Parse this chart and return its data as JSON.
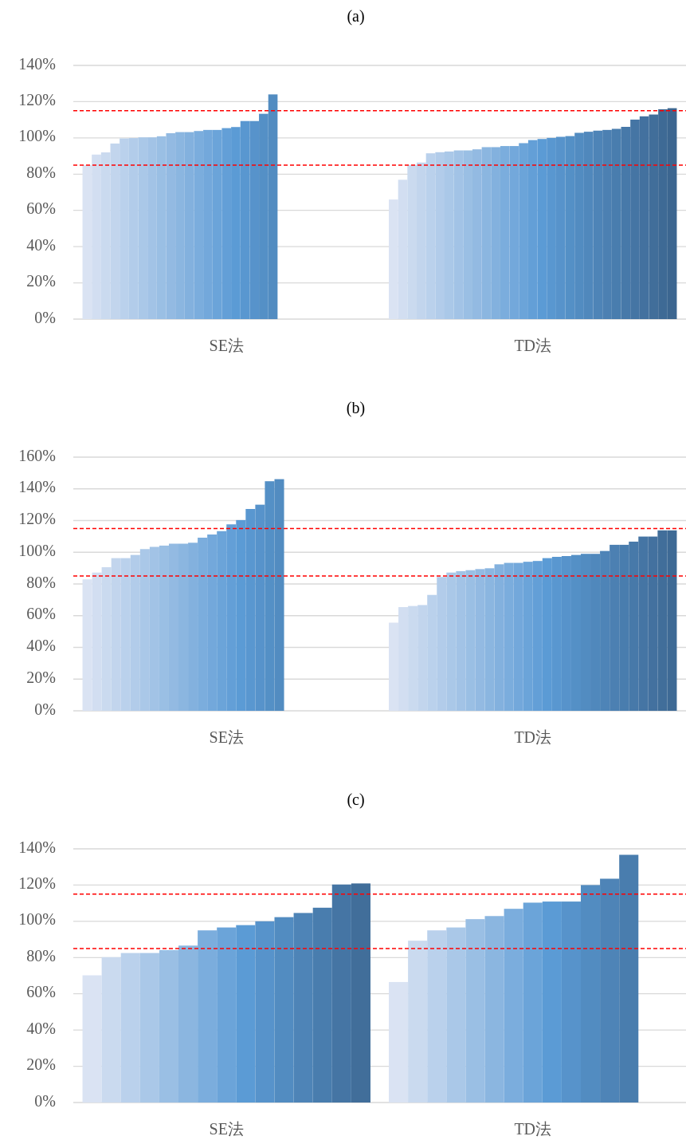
{
  "chart_data": [
    {
      "type": "bar",
      "title": "(a)",
      "categories": [
        "SE法",
        "TD法"
      ],
      "ylim": [
        0,
        140
      ],
      "yticks": [
        {
          "value": 0,
          "label": "0%"
        },
        {
          "value": 20,
          "label": "20%"
        },
        {
          "value": 40,
          "label": "40%"
        },
        {
          "value": 60,
          "label": "60%"
        },
        {
          "value": 80,
          "label": "80%"
        },
        {
          "value": 100,
          "label": "100%"
        },
        {
          "value": 120,
          "label": "120%"
        },
        {
          "value": 140,
          "label": "140%"
        }
      ],
      "grid": "y",
      "ref_lines": [
        {
          "axis": "y",
          "value": 115,
          "color": "#ff0000",
          "line_style": "dashed"
        },
        {
          "axis": "y",
          "value": 85,
          "color": "#ff0000",
          "line_style": "dashed"
        }
      ],
      "series": [
        {
          "color": "#dae3f3",
          "values": [
            85,
            66
          ]
        },
        {
          "color": "#d2def1",
          "values": [
            90.8,
            76.9
          ]
        },
        {
          "color": "#cadaef",
          "values": [
            92,
            85.1
          ]
        },
        {
          "color": "#c2d5ed",
          "values": [
            96.9,
            86.4
          ]
        },
        {
          "color": "#bad1ec",
          "values": [
            99.7,
            91.5
          ]
        },
        {
          "color": "#b2ccea",
          "values": [
            99.9,
            92.1
          ]
        },
        {
          "color": "#aac8e8",
          "values": [
            100.3,
            92.5
          ]
        },
        {
          "color": "#a2c3e6",
          "values": [
            100.3,
            93.1
          ]
        },
        {
          "color": "#9abfe4",
          "values": [
            100.9,
            93.1
          ]
        },
        {
          "color": "#93bae2",
          "values": [
            102.6,
            93.7
          ]
        },
        {
          "color": "#8bb6e0",
          "values": [
            103.2,
            94.9
          ]
        },
        {
          "color": "#83b1de",
          "values": [
            103.2,
            94.9
          ]
        },
        {
          "color": "#7baddd",
          "values": [
            103.8,
            95.5
          ]
        },
        {
          "color": "#73a8db",
          "values": [
            104.4,
            95.5
          ]
        },
        {
          "color": "#6ba4d9",
          "values": [
            104.4,
            97.1
          ]
        },
        {
          "color": "#639fd7",
          "values": [
            105.4,
            98.8
          ]
        },
        {
          "color": "#5b9bd5",
          "values": [
            106,
            99.4
          ]
        },
        {
          "color": "#5997d0",
          "values": [
            109.3,
            100
          ]
        },
        {
          "color": "#5793cb",
          "values": [
            109.3,
            100.6
          ]
        },
        {
          "color": "#5490c6",
          "values": [
            113.3,
            101
          ]
        },
        {
          "color": "#528cc1",
          "values": [
            124,
            102.8
          ]
        },
        {
          "color": "#5088bc",
          "values": [
            null,
            103.4
          ]
        },
        {
          "color": "#4e84b7",
          "values": [
            null,
            104
          ]
        },
        {
          "color": "#4c80b2",
          "values": [
            null,
            104.4
          ]
        },
        {
          "color": "#497dae",
          "values": [
            null,
            105
          ]
        },
        {
          "color": "#4779a9",
          "values": [
            null,
            106.1
          ]
        },
        {
          "color": "#4575a4",
          "values": [
            null,
            110.1
          ]
        },
        {
          "color": "#43719f",
          "values": [
            null,
            111.9
          ]
        },
        {
          "color": "#416e9a",
          "values": [
            null,
            112.9
          ]
        },
        {
          "color": "#3e6a95",
          "values": [
            null,
            115.8
          ]
        },
        {
          "color": "#3c6690",
          "values": [
            null,
            116.4
          ]
        }
      ]
    },
    {
      "type": "bar",
      "title": "(b)",
      "categories": [
        "SE法",
        "TD法"
      ],
      "ylim": [
        0,
        160
      ],
      "yticks": [
        {
          "value": 0,
          "label": "0%"
        },
        {
          "value": 20,
          "label": "20%"
        },
        {
          "value": 40,
          "label": "40%"
        },
        {
          "value": 60,
          "label": "60%"
        },
        {
          "value": 80,
          "label": "80%"
        },
        {
          "value": 100,
          "label": "100%"
        },
        {
          "value": 120,
          "label": "120%"
        },
        {
          "value": 140,
          "label": "140%"
        },
        {
          "value": 160,
          "label": "160%"
        }
      ],
      "grid": "y",
      "ref_lines": [
        {
          "axis": "y",
          "value": 115,
          "color": "#ff0000",
          "line_style": "dashed"
        },
        {
          "axis": "y",
          "value": 85,
          "color": "#ff0000",
          "line_style": "dashed"
        }
      ],
      "series": [
        {
          "color": "#dae3f3",
          "values": [
            82.9,
            55.6
          ]
        },
        {
          "color": "#d2def1",
          "values": [
            87.2,
            65.4
          ]
        },
        {
          "color": "#cadaef",
          "values": [
            90.6,
            66.1
          ]
        },
        {
          "color": "#c2d5ed",
          "values": [
            96.3,
            66.7
          ]
        },
        {
          "color": "#bad1ec",
          "values": [
            96.3,
            73.1
          ]
        },
        {
          "color": "#b2ccea",
          "values": [
            98.3,
            84.4
          ]
        },
        {
          "color": "#aac8e8",
          "values": [
            102,
            87.2
          ]
        },
        {
          "color": "#a2c3e6",
          "values": [
            103.4,
            88.1
          ]
        },
        {
          "color": "#9abfe4",
          "values": [
            104.2,
            88.7
          ]
        },
        {
          "color": "#93bae2",
          "values": [
            105.4,
            89.4
          ]
        },
        {
          "color": "#8bb6e0",
          "values": [
            105.4,
            89.9
          ]
        },
        {
          "color": "#83b1de",
          "values": [
            106,
            92.4
          ]
        },
        {
          "color": "#7baddd",
          "values": [
            109.2,
            93.3
          ]
        },
        {
          "color": "#73a8db",
          "values": [
            111.2,
            93.3
          ]
        },
        {
          "color": "#6ba4d9",
          "values": [
            113.3,
            94
          ]
        },
        {
          "color": "#639fd7",
          "values": [
            117.6,
            94.5
          ]
        },
        {
          "color": "#5b9bd5",
          "values": [
            120.3,
            96.3
          ]
        },
        {
          "color": "#5997d0",
          "values": [
            127.3,
            97.1
          ]
        },
        {
          "color": "#5793cb",
          "values": [
            130,
            97.6
          ]
        },
        {
          "color": "#5490c6",
          "values": [
            144.8,
            98.3
          ]
        },
        {
          "color": "#528cc1",
          "values": [
            146.1,
            99
          ]
        },
        {
          "color": "#5088bc",
          "values": [
            null,
            99
          ]
        },
        {
          "color": "#4e84b7",
          "values": [
            null,
            100.8
          ]
        },
        {
          "color": "#4c80b2",
          "values": [
            null,
            104.7
          ]
        },
        {
          "color": "#497dae",
          "values": [
            null,
            104.7
          ]
        },
        {
          "color": "#4779a9",
          "values": [
            null,
            106.7
          ]
        },
        {
          "color": "#4575a4",
          "values": [
            null,
            109.9
          ]
        },
        {
          "color": "#43719f",
          "values": [
            null,
            109.9
          ]
        },
        {
          "color": "#416e9a",
          "values": [
            null,
            113.8
          ]
        },
        {
          "color": "#3e6a95",
          "values": [
            null,
            113.8
          ]
        }
      ]
    },
    {
      "type": "bar",
      "title": "(c)",
      "categories": [
        "SE法",
        "TD法"
      ],
      "ylim": [
        0,
        140
      ],
      "yticks": [
        {
          "value": 0,
          "label": "0%"
        },
        {
          "value": 20,
          "label": "20%"
        },
        {
          "value": 40,
          "label": "40%"
        },
        {
          "value": 60,
          "label": "60%"
        },
        {
          "value": 80,
          "label": "80%"
        },
        {
          "value": 100,
          "label": "100%"
        },
        {
          "value": 120,
          "label": "120%"
        },
        {
          "value": 140,
          "label": "140%"
        }
      ],
      "grid": "y",
      "ref_lines": [
        {
          "axis": "y",
          "value": 115,
          "color": "#ff0000",
          "line_style": "dashed"
        },
        {
          "axis": "y",
          "value": 85,
          "color": "#ff0000",
          "line_style": "dashed"
        }
      ],
      "series": [
        {
          "color": "#dae3f3",
          "values": [
            70.2,
            66.5
          ]
        },
        {
          "color": "#cadaef",
          "values": [
            80.2,
            89.3
          ]
        },
        {
          "color": "#bad1ec",
          "values": [
            82.5,
            95
          ]
        },
        {
          "color": "#aac8e8",
          "values": [
            82.5,
            96.6
          ]
        },
        {
          "color": "#9abfe4",
          "values": [
            84.1,
            101.2
          ]
        },
        {
          "color": "#8bb6e0",
          "values": [
            86.6,
            102.9
          ]
        },
        {
          "color": "#7baddd",
          "values": [
            95,
            106.9
          ]
        },
        {
          "color": "#6ba4d9",
          "values": [
            96.6,
            110.3
          ]
        },
        {
          "color": "#5b9bd5",
          "values": [
            97.9,
            110.9
          ]
        },
        {
          "color": "#5793cb",
          "values": [
            100,
            110.9
          ]
        },
        {
          "color": "#528cc1",
          "values": [
            102.3,
            120
          ]
        },
        {
          "color": "#4e84b7",
          "values": [
            104.6,
            123.5
          ]
        },
        {
          "color": "#497dae",
          "values": [
            107.5,
            136.7
          ]
        },
        {
          "color": "#4575a4",
          "values": [
            120.3,
            null
          ]
        },
        {
          "color": "#416e9a",
          "values": [
            120.9,
            null
          ]
        }
      ]
    }
  ]
}
